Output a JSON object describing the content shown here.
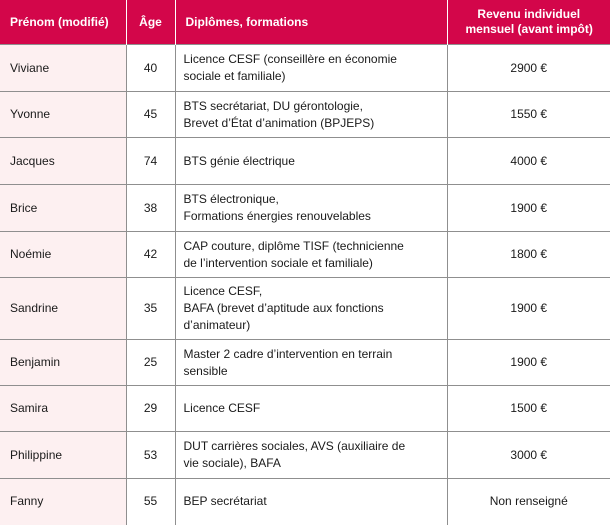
{
  "table": {
    "headers": {
      "name": "Prénom (modifié)",
      "age": "Âge",
      "diplomas": "Diplômes, formations",
      "income_line1": "Revenu individuel",
      "income_line2": "mensuel (avant impôt)"
    },
    "rows": [
      {
        "name": "Viviane",
        "age": "40",
        "diplomas": [
          "Licence CESF (conseillère en économie",
          "sociale et familiale)"
        ],
        "income": "2900 €"
      },
      {
        "name": "Yvonne",
        "age": "45",
        "diplomas": [
          "BTS secrétariat, DU gérontologie,",
          "Brevet d’État d’animation (BPJEPS)"
        ],
        "income": "1550 €"
      },
      {
        "name": "Jacques",
        "age": "74",
        "diplomas": [
          "BTS génie électrique"
        ],
        "income": "4000 €"
      },
      {
        "name": "Brice",
        "age": "38",
        "diplomas": [
          "BTS électronique,",
          "Formations énergies renouvelables"
        ],
        "income": "1900 €"
      },
      {
        "name": "Noémie",
        "age": "42",
        "diplomas": [
          "CAP couture, diplôme TISF (technicienne",
          "de l’intervention sociale et familiale)"
        ],
        "income": "1800 €"
      },
      {
        "name": "Sandrine",
        "age": "35",
        "diplomas": [
          "Licence CESF,",
          "BAFA (brevet d’aptitude aux fonctions",
          "d’animateur)"
        ],
        "income": "1900 €"
      },
      {
        "name": "Benjamin",
        "age": "25",
        "diplomas": [
          "Master 2 cadre d’intervention en terrain",
          "sensible"
        ],
        "income": "1900 €"
      },
      {
        "name": "Samira",
        "age": "29",
        "diplomas": [
          "Licence CESF"
        ],
        "income": "1500 €"
      },
      {
        "name": "Philippine",
        "age": "53",
        "diplomas": [
          "DUT carrières sociales, AVS (auxiliaire de",
          "vie sociale), BAFA"
        ],
        "income": "3000 €"
      },
      {
        "name": "Fanny",
        "age": "55",
        "diplomas": [
          "BEP secrétariat"
        ],
        "income": "Non renseigné"
      }
    ]
  }
}
